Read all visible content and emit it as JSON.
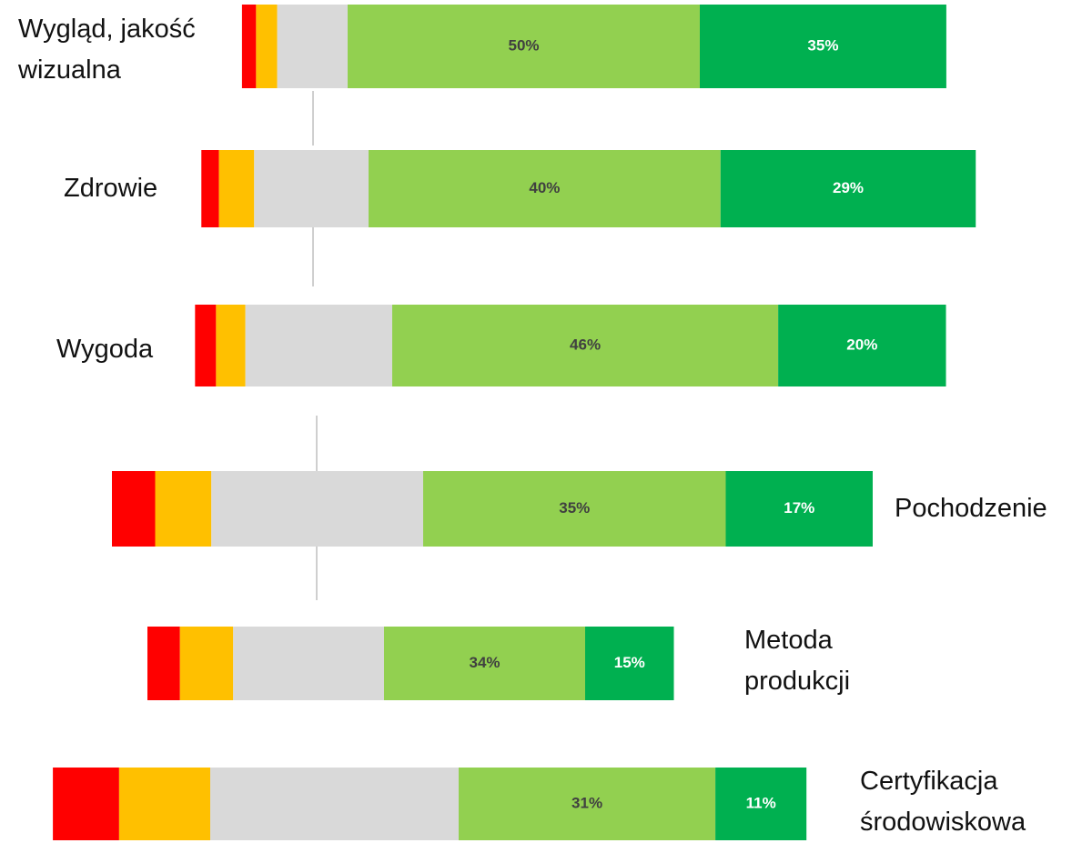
{
  "chart_data": {
    "type": "bar",
    "orientation": "horizontal",
    "stacked": true,
    "categories": [
      "Wygląd, jakość wizualna",
      "Zdrowie",
      "Wygoda",
      "Pochodzenie",
      "Metoda produkcji",
      "Certyfikacja środowiskowa"
    ],
    "series": [
      {
        "color": "#ff0000",
        "values": [
          2,
          2,
          2.5,
          5,
          5.5,
          8
        ]
      },
      {
        "color": "#ffc000",
        "values": [
          3,
          4,
          3.5,
          6.5,
          9,
          11
        ]
      },
      {
        "color": "#d9d9d9",
        "values": [
          10,
          13,
          17.5,
          24.5,
          25.5,
          30
        ]
      },
      {
        "color": "#92d050",
        "values": [
          50,
          40,
          46,
          35,
          34,
          31
        ],
        "value_labels": [
          "50%",
          "40%",
          "46%",
          "35%",
          "34%",
          "31%"
        ]
      },
      {
        "color": "#00b050",
        "values": [
          35,
          29,
          20,
          17,
          15,
          11
        ],
        "value_labels": [
          "35%",
          "29%",
          "20%",
          "17%",
          "15%",
          "11%"
        ]
      }
    ]
  }
}
